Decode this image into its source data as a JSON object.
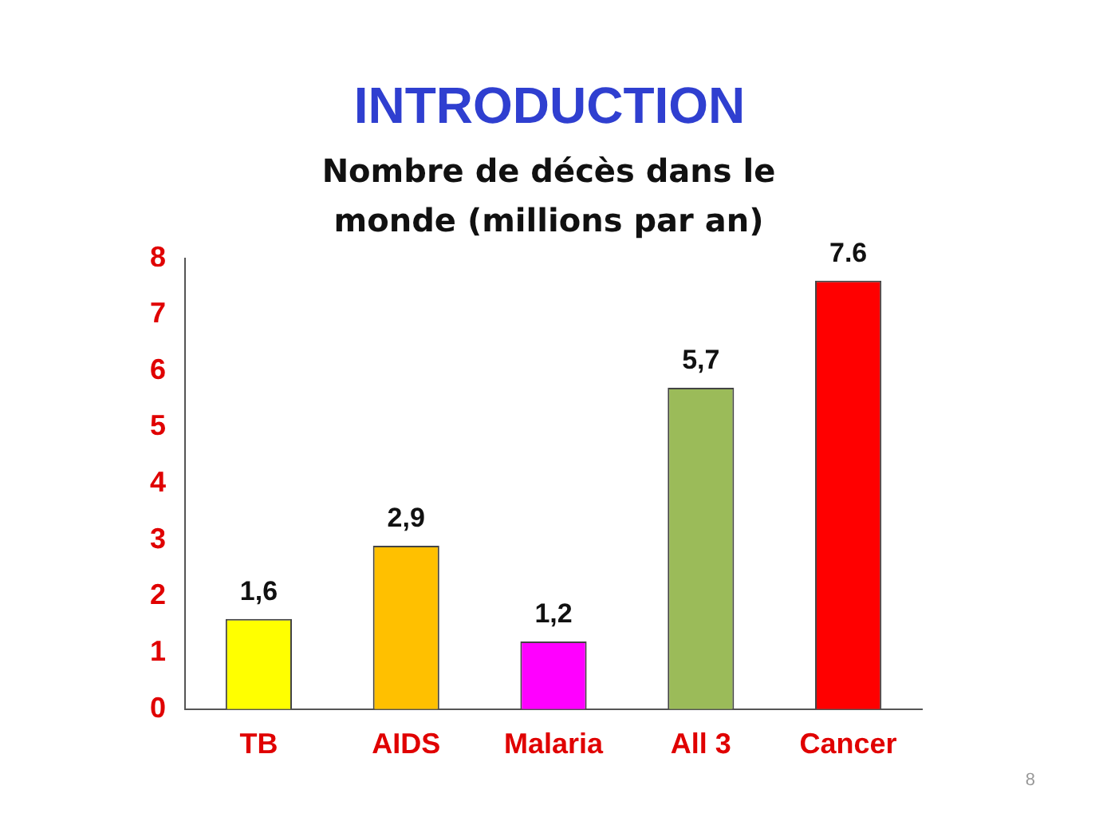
{
  "chart_data": {
    "type": "bar",
    "title": "INTRODUCTION",
    "subtitle": "Nombre de décès dans le monde (millions par an)",
    "categories": [
      "TB",
      "AIDS",
      "Malaria",
      "All 3",
      "Cancer"
    ],
    "values": [
      1.6,
      2.9,
      1.2,
      5.7,
      7.6
    ],
    "colors": [
      "#ffff00",
      "#ffc000",
      "#ff00ff",
      "#9bbb59",
      "#ff0000"
    ],
    "value_labels": [
      "1,6",
      "2,9",
      "1,2",
      "5,7",
      "7.6"
    ],
    "ylim": [
      0,
      8
    ],
    "yticks": [
      0,
      1,
      2,
      3,
      4,
      5,
      6,
      7,
      8
    ],
    "grid": false,
    "legend": false,
    "annotations": [
      "8"
    ]
  }
}
